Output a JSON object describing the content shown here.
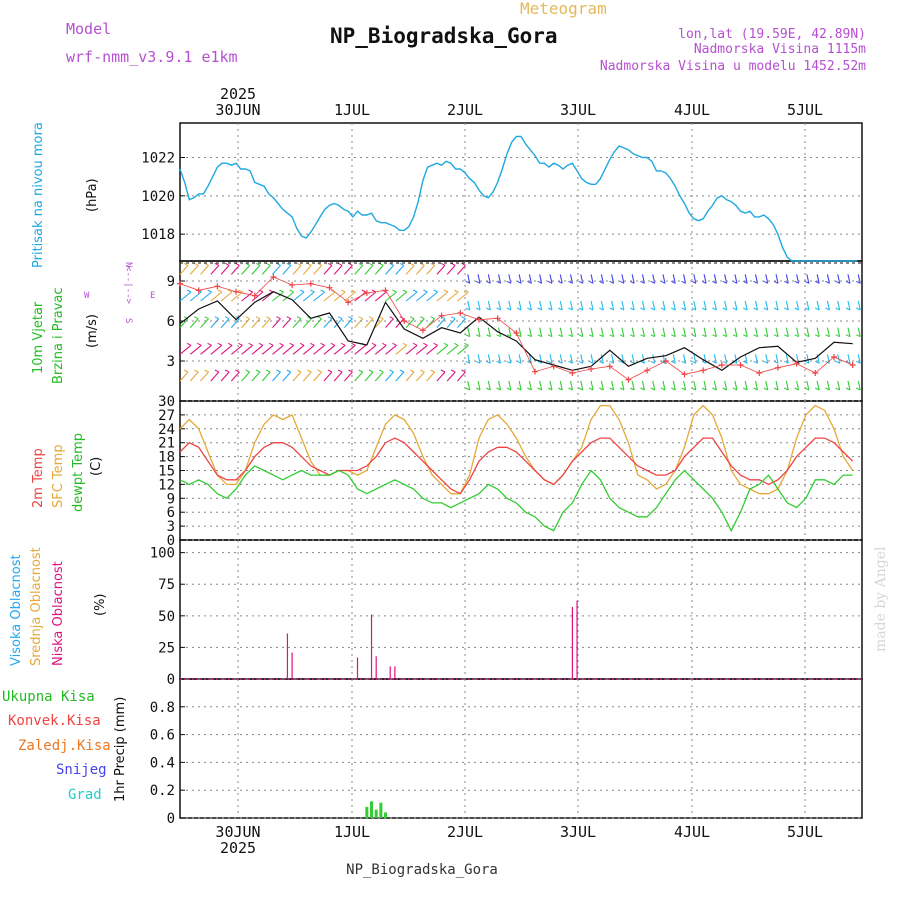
{
  "header": {
    "model_label": "Model",
    "model_name": "wrf-nmm_v3.9.1 e1km",
    "meteogram_label": "Meteogram",
    "station_title": "NP_Biogradska_Gora",
    "lonlat": "lon,lat (19.59E, 42.89N)",
    "elevation": "Nadmorska Visina 1115m",
    "model_elevation": "Nadmorska Visina u modelu 1452.52m",
    "footer": "NP_Biogradska_Gora",
    "watermark": "made by Angel"
  },
  "colors": {
    "pressure": "#1fa8e0",
    "temp2m": "#ee4444",
    "sfc": "#e6a83a",
    "dewpt": "#33cc33",
    "cloud_high": "#22aaee",
    "cloud_mid": "#e6a83a",
    "cloud_low": "#e0117f",
    "conv": "#ee4444",
    "snow": "#4444ee",
    "hail": "#22cccc",
    "purple": "#b64fd1",
    "gold": "#e6b85c"
  },
  "chart_data": [
    {
      "type": "line",
      "panel": "pressure",
      "ylabel_vertical": "Pritisak na nivou mora",
      "unit": "(hPa)",
      "year": "2025",
      "x_ticks": [
        "30JUN",
        "1JUL",
        "2JUL",
        "3JUL",
        "4JUL",
        "5JUL"
      ],
      "ylim": [
        1016.6,
        1023.8
      ],
      "y_ticks": [
        "1018",
        "1020",
        "1022"
      ],
      "grid": true,
      "series": [
        {
          "x": [
            0,
            1,
            2,
            3,
            4,
            5,
            6,
            7,
            8,
            9,
            10,
            11,
            12,
            13,
            14,
            15,
            16,
            17,
            18,
            19,
            20,
            21,
            22,
            23,
            24,
            25,
            26,
            27,
            28,
            29,
            30,
            31,
            32,
            33,
            34,
            35,
            36,
            37,
            38,
            39,
            40,
            41,
            42,
            43,
            44,
            45,
            46,
            47,
            48,
            49,
            50,
            51,
            52,
            53,
            54,
            55,
            56,
            57,
            58,
            59,
            60,
            61,
            62,
            63,
            64,
            65,
            66,
            67,
            68,
            69,
            70,
            71,
            72,
            73,
            74,
            75,
            76,
            77,
            78,
            79,
            80,
            81,
            82,
            83,
            84,
            85,
            86,
            87,
            88,
            89,
            90,
            91,
            92,
            93,
            94,
            95,
            96,
            97,
            98,
            99,
            100,
            101,
            102,
            103,
            104,
            105,
            106,
            107,
            108,
            109,
            110,
            111,
            112,
            113,
            114,
            115,
            116,
            117,
            118,
            119,
            120,
            121,
            122,
            123,
            124,
            125,
            126,
            127,
            128,
            129,
            130,
            131,
            132,
            133,
            134,
            135,
            136,
            137,
            138,
            139,
            140,
            141,
            142,
            143,
            144,
            145
          ],
          "values": [
            1021.4,
            1020.7,
            1019.8,
            1019.9,
            1020.1,
            1020.1,
            1020.5,
            1021.0,
            1021.5,
            1021.7,
            1021.7,
            1021.6,
            1021.7,
            1021.4,
            1021.4,
            1021.3,
            1020.7,
            1020.6,
            1020.5,
            1020.1,
            1019.9,
            1019.6,
            1019.3,
            1019.1,
            1018.9,
            1018.3,
            1017.9,
            1017.8,
            1018.1,
            1018.5,
            1018.9,
            1019.3,
            1019.5,
            1019.6,
            1019.5,
            1019.3,
            1019.2,
            1018.9,
            1019.2,
            1019.0,
            1019.0,
            1019.1,
            1018.7,
            1018.6,
            1018.6,
            1018.5,
            1018.4,
            1018.2,
            1018.2,
            1018.4,
            1018.9,
            1019.7,
            1020.8,
            1021.5,
            1021.6,
            1021.7,
            1021.6,
            1021.8,
            1021.7,
            1021.4,
            1021.4,
            1021.2,
            1020.9,
            1020.7,
            1020.3,
            1020.0,
            1019.9,
            1020.2,
            1020.7,
            1021.4,
            1022.2,
            1022.8,
            1023.1,
            1023.1,
            1022.7,
            1022.4,
            1022.1,
            1021.7,
            1021.7,
            1021.5,
            1021.7,
            1021.6,
            1021.4,
            1021.6,
            1021.7,
            1021.3,
            1020.9,
            1020.7,
            1020.6,
            1020.6,
            1020.9,
            1021.4,
            1021.9,
            1022.3,
            1022.6,
            1022.5,
            1022.4,
            1022.2,
            1022.1,
            1022.0,
            1022.0,
            1021.8,
            1021.3,
            1021.3,
            1021.2,
            1020.9,
            1020.5,
            1020.0,
            1019.6,
            1019.1,
            1018.8,
            1018.7,
            1018.8,
            1019.2,
            1019.5,
            1019.9,
            1020.0,
            1019.8,
            1019.7,
            1019.5,
            1019.2,
            1019.1,
            1019.2,
            1018.9,
            1018.9,
            1019.0,
            1018.8,
            1018.5,
            1018.0,
            1017.3,
            1016.8,
            1016.6,
            1016.6,
            1016.6,
            1016.6,
            1016.6,
            1016.6,
            1016.6,
            1016.6,
            1016.6,
            1016.6,
            1016.6,
            1016.6,
            1016.6,
            1016.6,
            1016.6
          ]
        }
      ]
    },
    {
      "type": "line",
      "panel": "wind",
      "labels_vertical": [
        "10m Vjetar",
        "Brzina i Pravac"
      ],
      "unit": "(m/s)",
      "compass": {
        "n": "N",
        "w": "W",
        "e": "E",
        "s": "S",
        "arrows": "<--|-->"
      },
      "ylim": [
        0,
        10.5
      ],
      "y_ticks": [
        "3",
        "6",
        "9"
      ],
      "grid": true,
      "series": [
        {
          "name": "wind-speed",
          "x": [
            0,
            4,
            8,
            12,
            16,
            20,
            24,
            28,
            32,
            36,
            40,
            44,
            48,
            52,
            56,
            60,
            64,
            68,
            72,
            76,
            80,
            84,
            88,
            92,
            96,
            100,
            104,
            108,
            112,
            116,
            120,
            124,
            128,
            132,
            136,
            140,
            144
          ],
          "values": [
            5.8,
            6.9,
            7.5,
            6.1,
            7.4,
            8.2,
            7.6,
            6.2,
            6.6,
            4.5,
            4.2,
            7.4,
            5.4,
            4.7,
            5.5,
            5.1,
            6.3,
            5.2,
            4.5,
            3.1,
            2.7,
            2.3,
            2.6,
            3.8,
            2.6,
            3.2,
            3.4,
            4.0,
            3.1,
            2.3,
            3.3,
            4.0,
            4.1,
            2.9,
            3.2,
            4.4,
            4.3
          ]
        },
        {
          "name": "gust",
          "x": [
            0,
            4,
            8,
            12,
            16,
            20,
            24,
            28,
            32,
            36,
            40,
            44,
            48,
            52,
            56,
            60,
            64,
            68,
            72,
            76,
            80,
            84,
            88,
            92,
            96,
            100,
            104,
            108,
            112,
            116,
            120,
            124,
            128,
            132,
            136,
            140,
            144
          ],
          "values": [
            8.8,
            8.3,
            8.6,
            8.2,
            7.9,
            9.3,
            8.7,
            8.8,
            8.5,
            7.4,
            8.1,
            8.3,
            6.0,
            5.3,
            6.4,
            6.6,
            6.1,
            6.2,
            5.1,
            2.2,
            2.6,
            2.1,
            2.4,
            2.6,
            1.6,
            2.3,
            3.0,
            2.0,
            2.3,
            2.7,
            2.7,
            2.1,
            2.5,
            2.8,
            2.1,
            3.3,
            2.7
          ]
        }
      ]
    },
    {
      "type": "line",
      "panel": "temperature",
      "labels_vertical": [
        "2m Temp",
        "SFC Temp",
        "dewpt Temp"
      ],
      "unit": "(C)",
      "ylim": [
        0,
        30
      ],
      "y_ticks": [
        "0",
        "3",
        "6",
        "9",
        "12",
        "15",
        "18",
        "21",
        "24",
        "27",
        "30"
      ],
      "grid": true,
      "series": [
        {
          "name": "SFC Temp",
          "x": [
            0,
            2,
            4,
            6,
            8,
            10,
            12,
            14,
            16,
            18,
            20,
            22,
            24,
            26,
            28,
            30,
            32,
            34,
            36,
            38,
            40,
            42,
            44,
            46,
            48,
            50,
            52,
            54,
            56,
            58,
            60,
            62,
            64,
            66,
            68,
            70,
            72,
            74,
            76,
            78,
            80,
            82,
            84,
            86,
            88,
            90,
            92,
            94,
            96,
            98,
            100,
            102,
            104,
            106,
            108,
            110,
            112,
            114,
            116,
            118,
            120,
            122,
            124,
            126,
            128,
            130,
            132,
            134,
            136,
            138,
            140,
            142,
            144
          ],
          "values": [
            24,
            26,
            24,
            19,
            14,
            12,
            12,
            15,
            21,
            25,
            27,
            26,
            27,
            22,
            17,
            14,
            14,
            15,
            15,
            14,
            15,
            20,
            25,
            27,
            26,
            23,
            18,
            14,
            12,
            10,
            10,
            14,
            22,
            26,
            27,
            25,
            22,
            18,
            15,
            13,
            12,
            14,
            17,
            20,
            26,
            29,
            29,
            26,
            21,
            14,
            13,
            11,
            12,
            15,
            20,
            27,
            29,
            27,
            22,
            15,
            12,
            11,
            10,
            10,
            11,
            15,
            22,
            27,
            29,
            28,
            24,
            18,
            15
          ]
        },
        {
          "name": "2m Temp",
          "x": [
            0,
            2,
            4,
            6,
            8,
            10,
            12,
            14,
            16,
            18,
            20,
            22,
            24,
            26,
            28,
            30,
            32,
            34,
            36,
            38,
            40,
            42,
            44,
            46,
            48,
            50,
            52,
            54,
            56,
            58,
            60,
            62,
            64,
            66,
            68,
            70,
            72,
            74,
            76,
            78,
            80,
            82,
            84,
            86,
            88,
            90,
            92,
            94,
            96,
            98,
            100,
            102,
            104,
            106,
            108,
            110,
            112,
            114,
            116,
            118,
            120,
            122,
            124,
            126,
            128,
            130,
            132,
            134,
            136,
            138,
            140,
            142,
            144
          ],
          "values": [
            19,
            21,
            20,
            17,
            14,
            13,
            13,
            15,
            18,
            20,
            21,
            21,
            20,
            18,
            16,
            15,
            14,
            15,
            15,
            15,
            16,
            18,
            21,
            22,
            21,
            19,
            17,
            15,
            13,
            11,
            10,
            13,
            17,
            19,
            20,
            20,
            19,
            17,
            15,
            13,
            12,
            14,
            17,
            19,
            21,
            22,
            22,
            20,
            18,
            16,
            15,
            14,
            14,
            15,
            18,
            20,
            22,
            22,
            19,
            16,
            14,
            13,
            13,
            12,
            13,
            15,
            18,
            20,
            22,
            22,
            21,
            19,
            17
          ]
        },
        {
          "name": "dewpt Temp",
          "x": [
            0,
            2,
            4,
            6,
            8,
            10,
            12,
            14,
            16,
            18,
            20,
            22,
            24,
            26,
            28,
            30,
            32,
            34,
            36,
            38,
            40,
            42,
            44,
            46,
            48,
            50,
            52,
            54,
            56,
            58,
            60,
            62,
            64,
            66,
            68,
            70,
            72,
            74,
            76,
            78,
            80,
            82,
            84,
            86,
            88,
            90,
            92,
            94,
            96,
            98,
            100,
            102,
            104,
            106,
            108,
            110,
            112,
            114,
            116,
            118,
            120,
            122,
            124,
            126,
            128,
            130,
            132,
            134,
            136,
            138,
            140,
            142,
            144
          ],
          "values": [
            13,
            12,
            13,
            12,
            10,
            9,
            11,
            14,
            16,
            15,
            14,
            13,
            14,
            15,
            14,
            14,
            14,
            15,
            14,
            11,
            10,
            11,
            12,
            13,
            12,
            11,
            9,
            8,
            8,
            7,
            8,
            9,
            10,
            12,
            11,
            9,
            8,
            6,
            5,
            3,
            2,
            6,
            8,
            12,
            15,
            13,
            9,
            7,
            6,
            5,
            5,
            7,
            10,
            13,
            15,
            13,
            11,
            9,
            6,
            2,
            6,
            11,
            12,
            14,
            11,
            8,
            7,
            9,
            13,
            13,
            12,
            14,
            14
          ]
        }
      ]
    },
    {
      "type": "bar",
      "panel": "cloud",
      "labels_vertical": [
        "Visoka Oblacnost",
        "Srednja Oblacnost",
        "Niska Oblacnost"
      ],
      "unit": "(%)",
      "ylim": [
        0,
        110
      ],
      "y_ticks": [
        "0",
        "25",
        "50",
        "75",
        "100"
      ],
      "grid": true,
      "series": [
        {
          "name": "Niska Oblacnost",
          "x": [
            23,
            24,
            38,
            41,
            42,
            45,
            46,
            84,
            85
          ],
          "values": [
            36,
            21,
            17,
            51,
            18,
            10,
            10,
            57,
            62
          ]
        }
      ]
    },
    {
      "type": "bar",
      "panel": "precip",
      "labels": [
        "Ukupna Kisa",
        "Konvek.Kisa",
        "Zaledj.Kisa",
        "Snijeg",
        "Grad"
      ],
      "ylabel": "1hr Precip (mm)",
      "ylim": [
        0,
        1.0
      ],
      "y_ticks": [
        "0",
        "0.2",
        "0.4",
        "0.6",
        "0.8"
      ],
      "grid": true,
      "series": [
        {
          "name": "Ukupna Kisa",
          "x": [
            40,
            41,
            42,
            43,
            44
          ],
          "values": [
            0.08,
            0.12,
            0.06,
            0.11,
            0.04
          ]
        }
      ]
    }
  ]
}
